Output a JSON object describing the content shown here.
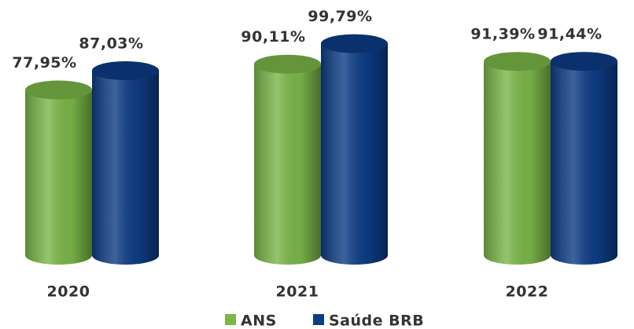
{
  "chart_data": {
    "type": "bar",
    "categories": [
      "2020",
      "2021",
      "2022"
    ],
    "series": [
      {
        "name": "ANS",
        "color": "#7ab648",
        "values": [
          77.95,
          90.11,
          91.39
        ],
        "value_labels": [
          "77,95%",
          "90,11%",
          "91,39%"
        ]
      },
      {
        "name": "Saúde BRB",
        "color": "#0d3c85",
        "values": [
          87.03,
          99.79,
          91.44
        ],
        "value_labels": [
          "87,03%",
          "99,79%",
          "91,44%"
        ]
      }
    ],
    "legend": "bottom"
  }
}
